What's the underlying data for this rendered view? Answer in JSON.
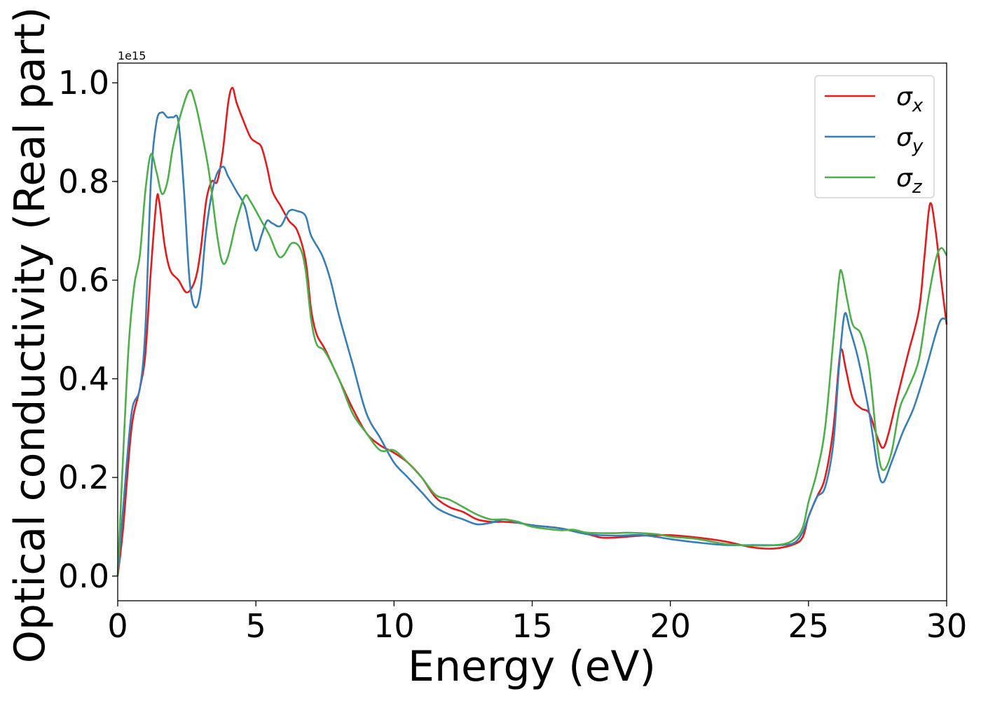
{
  "chart_data": {
    "type": "line",
    "title": "",
    "xlabel": "Energy (eV)",
    "ylabel": "Optical conductivity (Real part)",
    "y_offset_text": "1e15",
    "y_multiplier": 1000000000000000.0,
    "xlim": [
      0,
      30
    ],
    "ylim": [
      -0.05,
      1.04
    ],
    "xticks": [
      0,
      5,
      10,
      15,
      20,
      25,
      30
    ],
    "xtick_labels": [
      "0",
      "5",
      "10",
      "15",
      "20",
      "25",
      "30"
    ],
    "yticks": [
      0.0,
      0.2,
      0.4,
      0.6,
      0.8,
      1.0
    ],
    "ytick_labels": [
      "0.0",
      "0.2",
      "0.4",
      "0.6",
      "0.8",
      "1.0"
    ],
    "grid": false,
    "legend_position": "top-right",
    "series": [
      {
        "name": "σx",
        "legend_base": "σ",
        "legend_sub": "x",
        "color": "#e41a1c",
        "points": [
          [
            0,
            0.0
          ],
          [
            0.2,
            0.1
          ],
          [
            0.5,
            0.3
          ],
          [
            0.8,
            0.38
          ],
          [
            1.0,
            0.45
          ],
          [
            1.2,
            0.62
          ],
          [
            1.4,
            0.76
          ],
          [
            1.5,
            0.76
          ],
          [
            1.7,
            0.67
          ],
          [
            1.9,
            0.62
          ],
          [
            2.2,
            0.6
          ],
          [
            2.5,
            0.575
          ],
          [
            2.8,
            0.6
          ],
          [
            3.0,
            0.66
          ],
          [
            3.2,
            0.76
          ],
          [
            3.4,
            0.8
          ],
          [
            3.6,
            0.8
          ],
          [
            3.8,
            0.86
          ],
          [
            4.0,
            0.96
          ],
          [
            4.15,
            0.99
          ],
          [
            4.3,
            0.96
          ],
          [
            4.5,
            0.93
          ],
          [
            4.8,
            0.89
          ],
          [
            5.0,
            0.88
          ],
          [
            5.2,
            0.87
          ],
          [
            5.4,
            0.83
          ],
          [
            5.6,
            0.78
          ],
          [
            5.9,
            0.75
          ],
          [
            6.2,
            0.72
          ],
          [
            6.5,
            0.7
          ],
          [
            6.8,
            0.64
          ],
          [
            7.0,
            0.54
          ],
          [
            7.2,
            0.49
          ],
          [
            7.5,
            0.46
          ],
          [
            8.0,
            0.4
          ],
          [
            8.5,
            0.34
          ],
          [
            9.0,
            0.29
          ],
          [
            9.5,
            0.265
          ],
          [
            10.0,
            0.25
          ],
          [
            10.5,
            0.23
          ],
          [
            11.0,
            0.2
          ],
          [
            11.5,
            0.16
          ],
          [
            12.0,
            0.14
          ],
          [
            12.5,
            0.13
          ],
          [
            13.0,
            0.115
          ],
          [
            13.5,
            0.11
          ],
          [
            14.0,
            0.11
          ],
          [
            14.5,
            0.108
          ],
          [
            15.0,
            0.103
          ],
          [
            16.0,
            0.097
          ],
          [
            17.0,
            0.085
          ],
          [
            17.5,
            0.078
          ],
          [
            18.0,
            0.078
          ],
          [
            19.0,
            0.082
          ],
          [
            20.0,
            0.083
          ],
          [
            21.0,
            0.078
          ],
          [
            22.0,
            0.07
          ],
          [
            23.0,
            0.058
          ],
          [
            23.8,
            0.056
          ],
          [
            24.5,
            0.065
          ],
          [
            24.8,
            0.08
          ],
          [
            25.0,
            0.12
          ],
          [
            25.3,
            0.16
          ],
          [
            25.6,
            0.2
          ],
          [
            25.9,
            0.3
          ],
          [
            26.1,
            0.43
          ],
          [
            26.2,
            0.46
          ],
          [
            26.35,
            0.42
          ],
          [
            26.6,
            0.36
          ],
          [
            26.9,
            0.34
          ],
          [
            27.2,
            0.33
          ],
          [
            27.5,
            0.28
          ],
          [
            27.7,
            0.26
          ],
          [
            27.9,
            0.29
          ],
          [
            28.2,
            0.36
          ],
          [
            28.6,
            0.45
          ],
          [
            29.0,
            0.54
          ],
          [
            29.2,
            0.65
          ],
          [
            29.4,
            0.755
          ],
          [
            29.6,
            0.7
          ],
          [
            29.8,
            0.6
          ],
          [
            30.0,
            0.51
          ]
        ]
      },
      {
        "name": "σy",
        "legend_base": "σ",
        "legend_sub": "y",
        "color": "#377eb8",
        "points": [
          [
            0,
            0.0
          ],
          [
            0.2,
            0.14
          ],
          [
            0.5,
            0.33
          ],
          [
            0.8,
            0.38
          ],
          [
            1.0,
            0.5
          ],
          [
            1.2,
            0.8
          ],
          [
            1.4,
            0.92
          ],
          [
            1.6,
            0.94
          ],
          [
            1.8,
            0.93
          ],
          [
            2.0,
            0.93
          ],
          [
            2.2,
            0.92
          ],
          [
            2.4,
            0.78
          ],
          [
            2.6,
            0.6
          ],
          [
            2.8,
            0.545
          ],
          [
            3.0,
            0.58
          ],
          [
            3.2,
            0.7
          ],
          [
            3.5,
            0.8
          ],
          [
            3.8,
            0.83
          ],
          [
            4.0,
            0.81
          ],
          [
            4.3,
            0.78
          ],
          [
            4.6,
            0.75
          ],
          [
            4.8,
            0.7
          ],
          [
            5.0,
            0.66
          ],
          [
            5.2,
            0.69
          ],
          [
            5.4,
            0.72
          ],
          [
            5.6,
            0.715
          ],
          [
            5.9,
            0.71
          ],
          [
            6.2,
            0.74
          ],
          [
            6.5,
            0.74
          ],
          [
            6.8,
            0.73
          ],
          [
            7.0,
            0.69
          ],
          [
            7.4,
            0.65
          ],
          [
            7.7,
            0.6
          ],
          [
            8.0,
            0.53
          ],
          [
            8.5,
            0.43
          ],
          [
            9.0,
            0.33
          ],
          [
            9.5,
            0.28
          ],
          [
            10.0,
            0.23
          ],
          [
            10.5,
            0.2
          ],
          [
            11.0,
            0.17
          ],
          [
            11.5,
            0.14
          ],
          [
            12.0,
            0.125
          ],
          [
            12.5,
            0.115
          ],
          [
            13.0,
            0.105
          ],
          [
            13.5,
            0.108
          ],
          [
            14.0,
            0.115
          ],
          [
            14.5,
            0.108
          ],
          [
            15.0,
            0.103
          ],
          [
            16.0,
            0.097
          ],
          [
            17.0,
            0.085
          ],
          [
            18.0,
            0.082
          ],
          [
            19.0,
            0.083
          ],
          [
            20.0,
            0.075
          ],
          [
            21.0,
            0.068
          ],
          [
            22.0,
            0.063
          ],
          [
            23.0,
            0.063
          ],
          [
            24.0,
            0.063
          ],
          [
            24.5,
            0.068
          ],
          [
            24.8,
            0.09
          ],
          [
            25.0,
            0.12
          ],
          [
            25.3,
            0.16
          ],
          [
            25.6,
            0.18
          ],
          [
            25.9,
            0.27
          ],
          [
            26.1,
            0.42
          ],
          [
            26.3,
            0.53
          ],
          [
            26.5,
            0.5
          ],
          [
            26.8,
            0.44
          ],
          [
            27.2,
            0.33
          ],
          [
            27.5,
            0.22
          ],
          [
            27.7,
            0.19
          ],
          [
            28.0,
            0.23
          ],
          [
            28.4,
            0.29
          ],
          [
            28.8,
            0.34
          ],
          [
            29.2,
            0.41
          ],
          [
            29.6,
            0.49
          ],
          [
            29.8,
            0.52
          ],
          [
            30.0,
            0.52
          ]
        ]
      },
      {
        "name": "σz",
        "legend_base": "σ",
        "legend_sub": "z",
        "color": "#4daf4a",
        "points": [
          [
            0,
            0.0
          ],
          [
            0.2,
            0.25
          ],
          [
            0.4,
            0.47
          ],
          [
            0.6,
            0.59
          ],
          [
            0.8,
            0.65
          ],
          [
            1.0,
            0.78
          ],
          [
            1.2,
            0.855
          ],
          [
            1.4,
            0.82
          ],
          [
            1.6,
            0.775
          ],
          [
            1.8,
            0.8
          ],
          [
            2.0,
            0.87
          ],
          [
            2.3,
            0.94
          ],
          [
            2.6,
            0.985
          ],
          [
            2.8,
            0.96
          ],
          [
            3.0,
            0.91
          ],
          [
            3.3,
            0.82
          ],
          [
            3.6,
            0.69
          ],
          [
            3.8,
            0.635
          ],
          [
            4.0,
            0.65
          ],
          [
            4.3,
            0.72
          ],
          [
            4.6,
            0.77
          ],
          [
            4.8,
            0.76
          ],
          [
            5.2,
            0.72
          ],
          [
            5.5,
            0.69
          ],
          [
            5.8,
            0.65
          ],
          [
            6.0,
            0.65
          ],
          [
            6.3,
            0.675
          ],
          [
            6.6,
            0.665
          ],
          [
            6.8,
            0.62
          ],
          [
            7.0,
            0.52
          ],
          [
            7.2,
            0.47
          ],
          [
            7.5,
            0.455
          ],
          [
            8.0,
            0.4
          ],
          [
            8.5,
            0.33
          ],
          [
            9.0,
            0.29
          ],
          [
            9.5,
            0.255
          ],
          [
            10.0,
            0.255
          ],
          [
            10.5,
            0.23
          ],
          [
            11.0,
            0.2
          ],
          [
            11.5,
            0.165
          ],
          [
            12.0,
            0.155
          ],
          [
            12.5,
            0.14
          ],
          [
            13.0,
            0.125
          ],
          [
            13.5,
            0.115
          ],
          [
            14.0,
            0.115
          ],
          [
            14.5,
            0.11
          ],
          [
            15.0,
            0.1
          ],
          [
            16.0,
            0.093
          ],
          [
            16.5,
            0.094
          ],
          [
            17.0,
            0.088
          ],
          [
            18.0,
            0.087
          ],
          [
            18.5,
            0.088
          ],
          [
            19.5,
            0.085
          ],
          [
            20.0,
            0.08
          ],
          [
            21.0,
            0.075
          ],
          [
            22.0,
            0.065
          ],
          [
            23.0,
            0.062
          ],
          [
            24.0,
            0.064
          ],
          [
            24.5,
            0.075
          ],
          [
            24.8,
            0.1
          ],
          [
            25.0,
            0.15
          ],
          [
            25.3,
            0.21
          ],
          [
            25.6,
            0.3
          ],
          [
            25.9,
            0.48
          ],
          [
            26.1,
            0.6
          ],
          [
            26.2,
            0.617
          ],
          [
            26.4,
            0.56
          ],
          [
            26.6,
            0.51
          ],
          [
            26.9,
            0.49
          ],
          [
            27.2,
            0.42
          ],
          [
            27.5,
            0.26
          ],
          [
            27.7,
            0.215
          ],
          [
            28.0,
            0.25
          ],
          [
            28.3,
            0.34
          ],
          [
            28.6,
            0.38
          ],
          [
            29.0,
            0.44
          ],
          [
            29.3,
            0.55
          ],
          [
            29.6,
            0.64
          ],
          [
            29.8,
            0.665
          ],
          [
            30.0,
            0.65
          ]
        ]
      }
    ]
  }
}
